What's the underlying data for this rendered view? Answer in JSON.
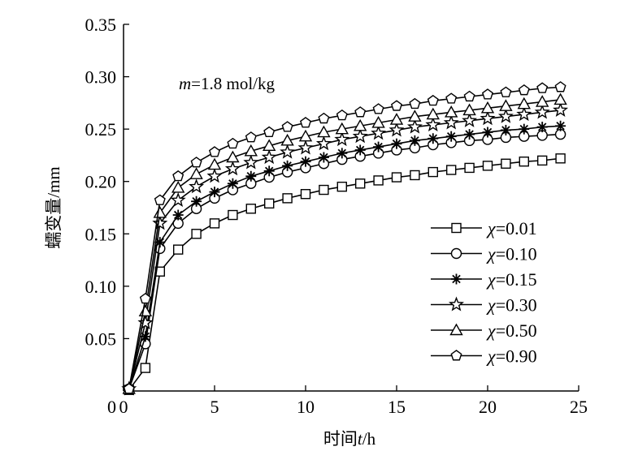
{
  "chart_data": {
    "type": "line",
    "title": "",
    "xlabel": "时间t/h",
    "xlabel_parts": {
      "prefix": "时间",
      "var": "t",
      "suffix": "/h"
    },
    "ylabel": "蠕变量/mm",
    "xlim": [
      0,
      25
    ],
    "ylim": [
      0,
      0.35
    ],
    "xticks": [
      0,
      5,
      10,
      15,
      20,
      25
    ],
    "xtick_labels": [
      "0",
      "5",
      "10",
      "15",
      "20",
      "25"
    ],
    "yticks": [
      0.05,
      0.1,
      0.15,
      0.2,
      0.25,
      0.3,
      0.35
    ],
    "ytick_labels": [
      "0.05",
      "0.10",
      "0.15",
      "0.20",
      "0.25",
      "0.30",
      "0.35"
    ],
    "grid": false,
    "legend_position": "right",
    "annotation": {
      "var": "m",
      "text": "=1.8 mol/kg"
    },
    "x": [
      0.3,
      1.2,
      2,
      3,
      4,
      5,
      6,
      7,
      8,
      9,
      10,
      11,
      12,
      13,
      14,
      15,
      16,
      17,
      18,
      19,
      20,
      21,
      22,
      23,
      24
    ],
    "series": [
      {
        "name": "χ=0.01",
        "var": "χ",
        "value_text": "=0.01",
        "marker": "square",
        "values": [
          0.001,
          0.022,
          0.114,
          0.135,
          0.15,
          0.16,
          0.168,
          0.174,
          0.179,
          0.184,
          0.188,
          0.192,
          0.195,
          0.198,
          0.201,
          0.204,
          0.206,
          0.209,
          0.211,
          0.213,
          0.215,
          0.217,
          0.219,
          0.22,
          0.222
        ]
      },
      {
        "name": "χ=0.10",
        "var": "χ",
        "value_text": "=0.10",
        "marker": "circle",
        "values": [
          0.002,
          0.045,
          0.136,
          0.16,
          0.174,
          0.184,
          0.192,
          0.198,
          0.204,
          0.209,
          0.213,
          0.217,
          0.221,
          0.224,
          0.227,
          0.23,
          0.232,
          0.235,
          0.237,
          0.239,
          0.24,
          0.242,
          0.243,
          0.244,
          0.245
        ]
      },
      {
        "name": "χ=0.15",
        "var": "χ",
        "value_text": "=0.15",
        "marker": "asterisk",
        "values": [
          0.002,
          0.052,
          0.142,
          0.168,
          0.181,
          0.19,
          0.198,
          0.205,
          0.21,
          0.215,
          0.219,
          0.223,
          0.227,
          0.23,
          0.233,
          0.236,
          0.239,
          0.241,
          0.243,
          0.245,
          0.247,
          0.249,
          0.25,
          0.252,
          0.253
        ]
      },
      {
        "name": "χ=0.30",
        "var": "χ",
        "value_text": "=0.30",
        "marker": "star",
        "values": [
          0.002,
          0.065,
          0.16,
          0.182,
          0.195,
          0.205,
          0.212,
          0.218,
          0.223,
          0.228,
          0.232,
          0.236,
          0.24,
          0.243,
          0.246,
          0.249,
          0.252,
          0.254,
          0.256,
          0.258,
          0.26,
          0.262,
          0.264,
          0.266,
          0.268
        ]
      },
      {
        "name": "χ=0.50",
        "var": "χ",
        "value_text": "=0.50",
        "marker": "triangle",
        "values": [
          0.002,
          0.076,
          0.17,
          0.194,
          0.207,
          0.216,
          0.223,
          0.229,
          0.234,
          0.239,
          0.243,
          0.247,
          0.25,
          0.253,
          0.256,
          0.259,
          0.262,
          0.264,
          0.266,
          0.268,
          0.27,
          0.272,
          0.274,
          0.276,
          0.278
        ]
      },
      {
        "name": "χ=0.90",
        "var": "χ",
        "value_text": "=0.90",
        "marker": "pentagon",
        "values": [
          0.002,
          0.088,
          0.182,
          0.205,
          0.218,
          0.228,
          0.236,
          0.242,
          0.247,
          0.252,
          0.256,
          0.26,
          0.263,
          0.266,
          0.269,
          0.272,
          0.274,
          0.277,
          0.279,
          0.281,
          0.283,
          0.285,
          0.287,
          0.289,
          0.29
        ]
      }
    ]
  },
  "colors": {
    "line": "#000000",
    "marker_fill": "#ffffff",
    "background": "#ffffff"
  }
}
